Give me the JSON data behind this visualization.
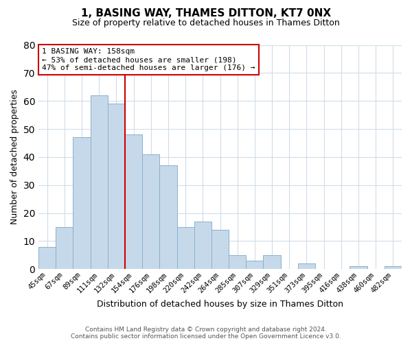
{
  "title": "1, BASING WAY, THAMES DITTON, KT7 0NX",
  "subtitle": "Size of property relative to detached houses in Thames Ditton",
  "xlabel": "Distribution of detached houses by size in Thames Ditton",
  "ylabel": "Number of detached properties",
  "bar_labels": [
    "45sqm",
    "67sqm",
    "89sqm",
    "111sqm",
    "132sqm",
    "154sqm",
    "176sqm",
    "198sqm",
    "220sqm",
    "242sqm",
    "264sqm",
    "285sqm",
    "307sqm",
    "329sqm",
    "351sqm",
    "373sqm",
    "395sqm",
    "416sqm",
    "438sqm",
    "460sqm",
    "482sqm"
  ],
  "bar_values": [
    8,
    15,
    47,
    62,
    59,
    48,
    41,
    37,
    15,
    17,
    14,
    5,
    3,
    5,
    0,
    2,
    0,
    0,
    1,
    0,
    1
  ],
  "bar_color": "#c6d9ea",
  "bar_edge_color": "#8ab0cc",
  "vline_color": "#cc0000",
  "ylim": [
    0,
    80
  ],
  "yticks": [
    0,
    10,
    20,
    30,
    40,
    50,
    60,
    70,
    80
  ],
  "annotation_title": "1 BASING WAY: 158sqm",
  "annotation_line1": "← 53% of detached houses are smaller (198)",
  "annotation_line2": "47% of semi-detached houses are larger (176) →",
  "footer_line1": "Contains HM Land Registry data © Crown copyright and database right 2024.",
  "footer_line2": "Contains public sector information licensed under the Open Government Licence v3.0.",
  "background_color": "#ffffff",
  "grid_color": "#d0dce8"
}
